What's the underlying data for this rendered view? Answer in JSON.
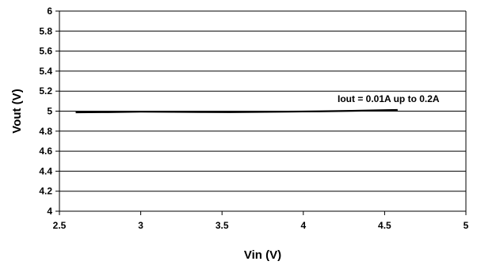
{
  "chart_data": {
    "type": "line",
    "title": "",
    "xlabel": "Vin (V)",
    "ylabel": "Vout (V)",
    "xlim": [
      2.5,
      5
    ],
    "ylim": [
      4,
      6
    ],
    "xticks": [
      "2.5",
      "3",
      "3.5",
      "4",
      "4.5",
      "5"
    ],
    "yticks": [
      "4",
      "4.2",
      "4.4",
      "4.6",
      "4.8",
      "5",
      "5.2",
      "5.4",
      "5.6",
      "5.8",
      "6"
    ],
    "grid": "horizontal",
    "legend": "none",
    "annotation": "Iout = 0.01A up to 0.2A",
    "line_color": "#000000",
    "series": [
      {
        "x": [
          2.6,
          2.8,
          3.0,
          3.2,
          3.4,
          3.55,
          3.7,
          3.9,
          4.1,
          4.3,
          4.45,
          4.58
        ],
        "y": [
          4.988,
          4.99,
          4.995,
          4.993,
          4.991,
          4.99,
          4.992,
          4.995,
          4.998,
          5.003,
          5.008,
          5.012
        ]
      }
    ]
  }
}
